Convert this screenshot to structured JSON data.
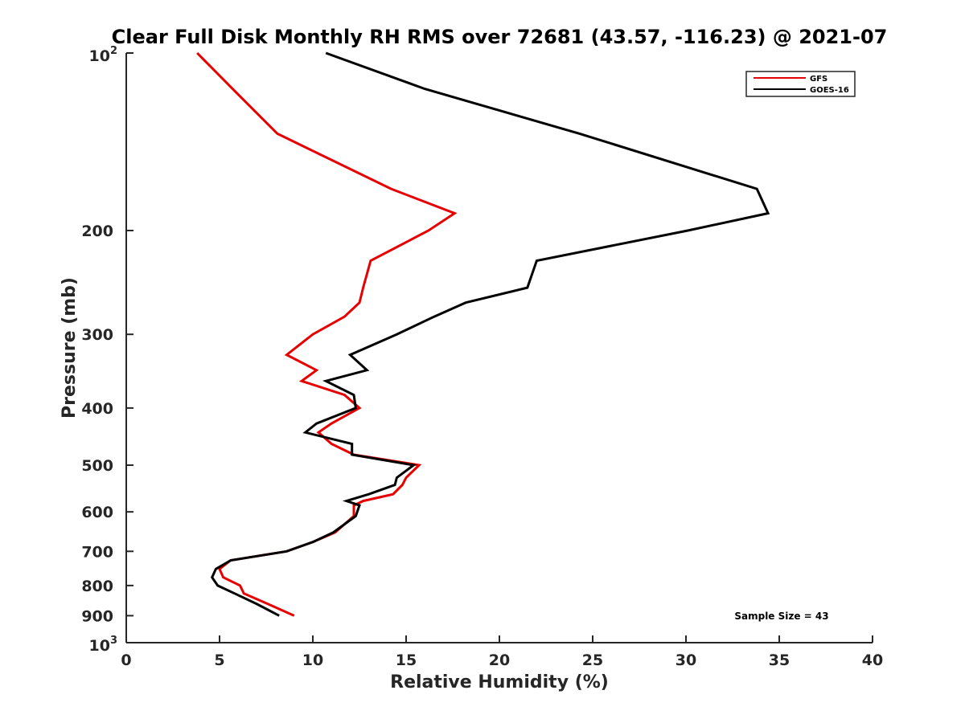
{
  "chart_data": {
    "type": "line",
    "title": "Clear Full Disk Monthly RH RMS over 72681 (43.57, -116.23) @ 2021-07",
    "xlabel": "Relative Humidity (%)",
    "ylabel": "Pressure (mb)",
    "xlim": [
      0,
      40
    ],
    "ylim": [
      100,
      1000
    ],
    "yscale": "log",
    "yreversed": true,
    "x_ticks": [
      0,
      5,
      10,
      15,
      20,
      25,
      30,
      35,
      40
    ],
    "x_tick_labels": [
      "0",
      "5",
      "10",
      "15",
      "20",
      "25",
      "30",
      "35",
      "40"
    ],
    "y_ticks": [
      200,
      300,
      400,
      500,
      600,
      700,
      800,
      900
    ],
    "y_tick_labels": [
      "200",
      "300",
      "400",
      "500",
      "600",
      "700",
      "800",
      "900"
    ],
    "y_top_label": {
      "base": "10",
      "exp": "2"
    },
    "y_bottom_label": {
      "base": "10",
      "exp": "3"
    },
    "legend_position": "top-right",
    "annotation": "Sample Size = 43",
    "series": [
      {
        "name": "GFS",
        "color": "#e60000",
        "points": [
          [
            3.8,
            100
          ],
          [
            5.7,
            115
          ],
          [
            8.1,
            137
          ],
          [
            14.2,
            170
          ],
          [
            17.6,
            187
          ],
          [
            16.2,
            200
          ],
          [
            13.1,
            225
          ],
          [
            12.7,
            250
          ],
          [
            12.5,
            265
          ],
          [
            11.7,
            280
          ],
          [
            10.0,
            300
          ],
          [
            8.6,
            325
          ],
          [
            10.2,
            345
          ],
          [
            9.4,
            360
          ],
          [
            11.7,
            380
          ],
          [
            12.5,
            400
          ],
          [
            11.0,
            425
          ],
          [
            10.3,
            440
          ],
          [
            11.0,
            460
          ],
          [
            12.2,
            480
          ],
          [
            15.7,
            500
          ],
          [
            15.0,
            525
          ],
          [
            14.8,
            540
          ],
          [
            14.3,
            560
          ],
          [
            12.7,
            575
          ],
          [
            12.2,
            585
          ],
          [
            12.2,
            610
          ],
          [
            11.2,
            650
          ],
          [
            10.0,
            675
          ],
          [
            8.6,
            700
          ],
          [
            5.6,
            725
          ],
          [
            5.0,
            750
          ],
          [
            5.2,
            775
          ],
          [
            6.1,
            800
          ],
          [
            6.3,
            825
          ],
          [
            7.6,
            860
          ],
          [
            9.0,
            900
          ]
        ]
      },
      {
        "name": "GOES-16",
        "color": "#000000",
        "points": [
          [
            10.7,
            100
          ],
          [
            16.0,
            115
          ],
          [
            24.3,
            137
          ],
          [
            33.8,
            170
          ],
          [
            34.4,
            187
          ],
          [
            30.1,
            200
          ],
          [
            22.0,
            225
          ],
          [
            21.5,
            250
          ],
          [
            18.2,
            265
          ],
          [
            16.5,
            280
          ],
          [
            14.5,
            300
          ],
          [
            12.0,
            325
          ],
          [
            12.9,
            345
          ],
          [
            10.7,
            360
          ],
          [
            12.2,
            380
          ],
          [
            12.3,
            400
          ],
          [
            10.2,
            425
          ],
          [
            9.6,
            440
          ],
          [
            12.1,
            460
          ],
          [
            12.1,
            480
          ],
          [
            15.4,
            500
          ],
          [
            14.5,
            525
          ],
          [
            14.4,
            540
          ],
          [
            13.0,
            560
          ],
          [
            11.8,
            575
          ],
          [
            12.5,
            585
          ],
          [
            12.3,
            610
          ],
          [
            11.1,
            650
          ],
          [
            10.0,
            675
          ],
          [
            8.6,
            700
          ],
          [
            5.6,
            725
          ],
          [
            4.8,
            750
          ],
          [
            4.6,
            775
          ],
          [
            4.9,
            800
          ],
          [
            5.8,
            825
          ],
          [
            7.0,
            860
          ],
          [
            8.2,
            900
          ]
        ]
      }
    ]
  }
}
